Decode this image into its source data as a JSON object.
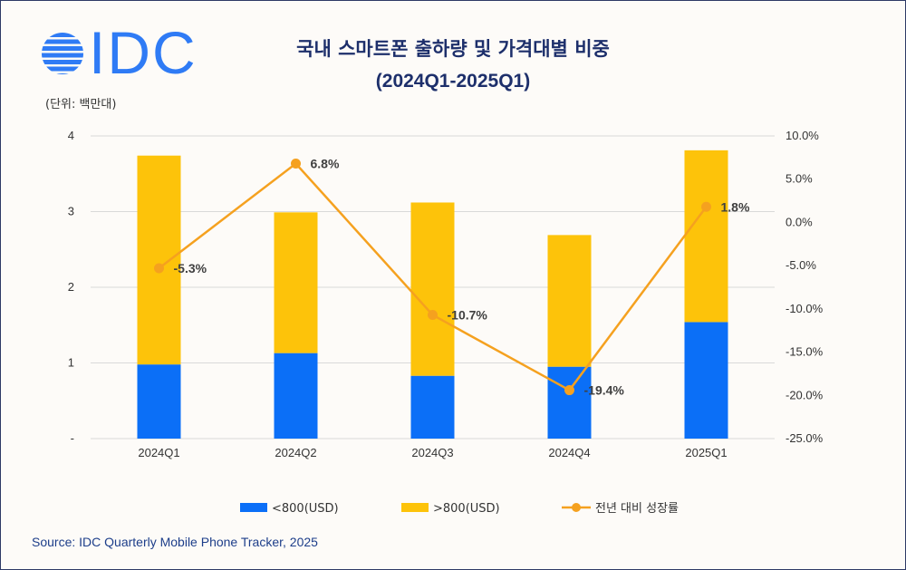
{
  "header": {
    "logo_text": "IDC",
    "title_line1": "국내 스마트폰 출하량 및 가격대별 비중",
    "title_line2": "(2024Q1-2025Q1)",
    "unit_label": "(단위: 백만대)"
  },
  "footer": {
    "source": "Source: IDC Quarterly Mobile Phone Tracker, 2025"
  },
  "colors": {
    "under_800": "#0b6ff7",
    "over_800": "#fdc30a",
    "growth_line": "#f5a11f",
    "brand": "#2f7bf5",
    "title": "#1d2f6b"
  },
  "chart_data": {
    "type": "bar",
    "stacked": true,
    "categories": [
      "2024Q1",
      "2024Q2",
      "2024Q3",
      "2024Q4",
      "2025Q1"
    ],
    "series": [
      {
        "name": "<800(USD)",
        "axis": "left",
        "values": [
          0.98,
          1.13,
          0.83,
          0.95,
          1.54
        ]
      },
      {
        "name": ">800(USD)",
        "axis": "left",
        "values": [
          2.76,
          1.86,
          2.29,
          1.74,
          2.27
        ]
      },
      {
        "name": "전년 대비 성장률",
        "type": "line",
        "axis": "right",
        "values": [
          -5.3,
          6.8,
          -10.7,
          -19.4,
          1.8
        ],
        "labels": [
          "-5.3%",
          "6.8%",
          "-10.7%",
          "-19.4%",
          "1.8%"
        ]
      }
    ],
    "y_left": {
      "ylim": [
        0,
        4
      ],
      "ticks": [
        0,
        1,
        2,
        3,
        4
      ],
      "tick_labels": [
        "-",
        "1",
        "2",
        "3",
        "4"
      ]
    },
    "y_right": {
      "ylim": [
        -25,
        10
      ],
      "ticks": [
        10,
        5,
        0,
        -5,
        -10,
        -15,
        -20,
        -25
      ],
      "tick_labels": [
        "10.0%",
        "5.0%",
        "0.0%",
        "-5.0%",
        "-10.0%",
        "-15.0%",
        "-20.0%",
        "-25.0%"
      ]
    },
    "grid": true,
    "legend_position": "bottom"
  }
}
